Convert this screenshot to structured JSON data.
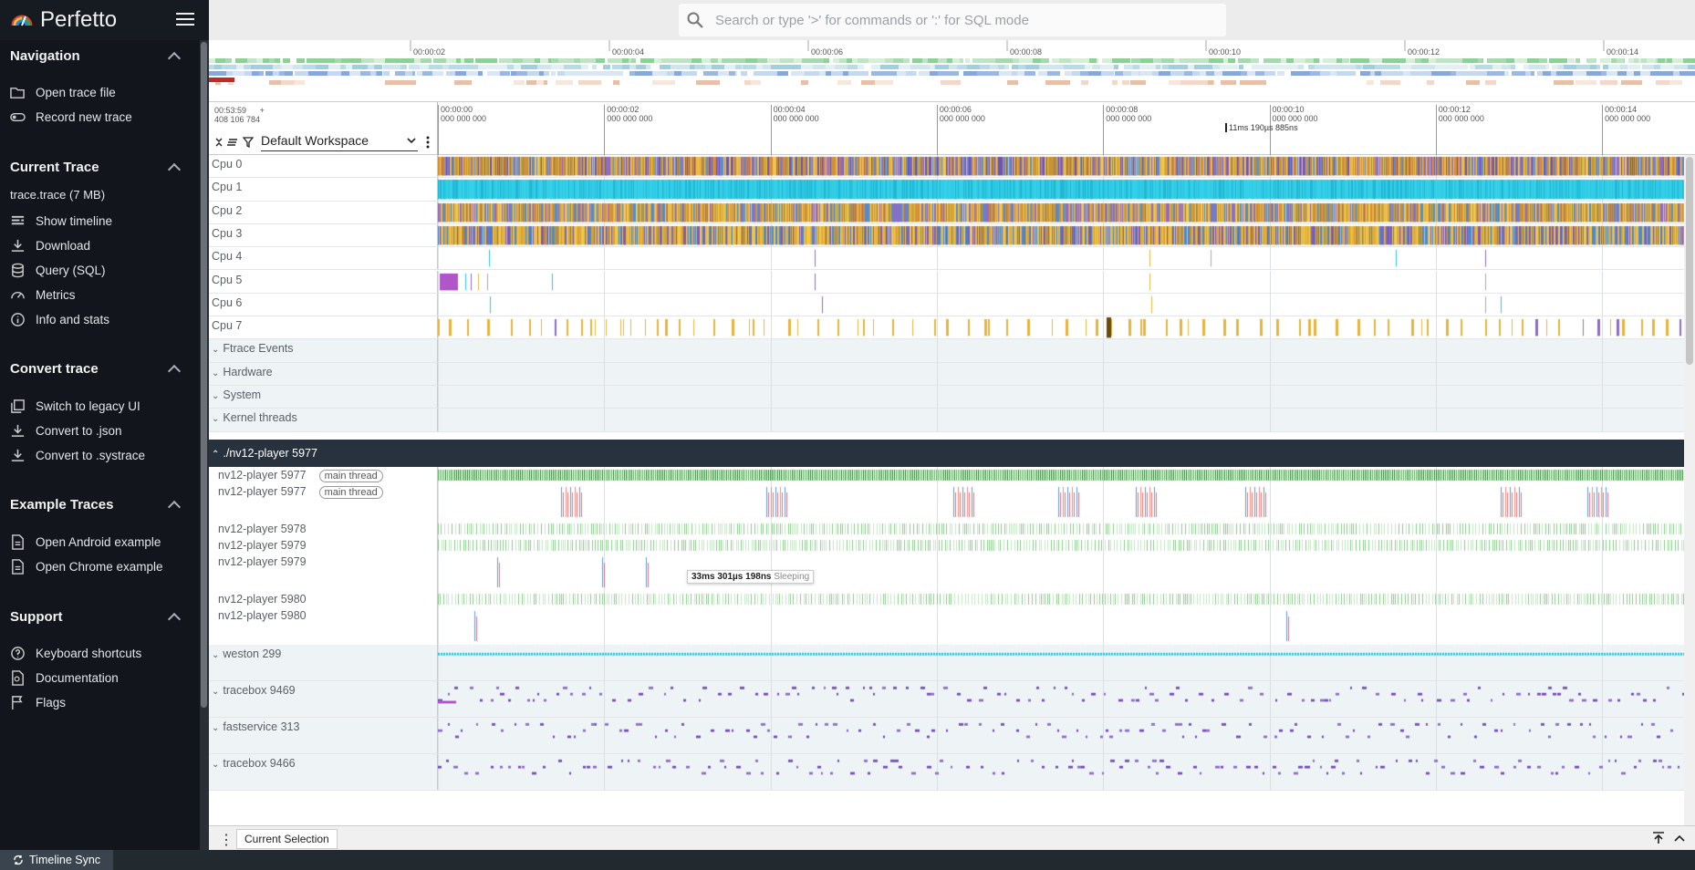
{
  "app": {
    "brand": "Perfetto"
  },
  "omnibox": {
    "placeholder": "Search or type '>' for commands or ':' for SQL mode"
  },
  "sidebar": {
    "sections": [
      {
        "title": "Navigation",
        "items": [
          "Open trace file",
          "Record new trace"
        ]
      },
      {
        "title": "Current Trace",
        "subtitle": "trace.trace (7 MB)",
        "items": [
          "Show timeline",
          "Download",
          "Query (SQL)",
          "Metrics",
          "Info and stats"
        ]
      },
      {
        "title": "Convert trace",
        "items": [
          "Switch to legacy UI",
          "Convert to .json",
          "Convert to .systrace"
        ]
      },
      {
        "title": "Example Traces",
        "items": [
          "Open Android example",
          "Open Chrome example"
        ]
      },
      {
        "title": "Support",
        "items": [
          "Keyboard shortcuts",
          "Documentation",
          "Flags"
        ]
      }
    ]
  },
  "overview": {
    "ticks": [
      "00:00:02",
      "00:00:04",
      "00:00:06",
      "00:00:08",
      "00:00:10",
      "00:00:12",
      "00:00:14"
    ]
  },
  "timeaxis": {
    "clock_line1": "00:53:59",
    "clock_line2": "408 106 784",
    "plus": "+",
    "workspace": "Default Workspace",
    "ticks": [
      {
        "t": "00:00:00",
        "ns": "000 000 000"
      },
      {
        "t": "00:00:02",
        "ns": "000 000 000"
      },
      {
        "t": "00:00:04",
        "ns": "000 000 000"
      },
      {
        "t": "00:00:06",
        "ns": "000 000 000"
      },
      {
        "t": "00:00:08",
        "ns": "000 000 000"
      },
      {
        "t": "00:00:10",
        "ns": "000 000 000"
      },
      {
        "t": "00:00:12",
        "ns": "000 000 000"
      },
      {
        "t": "00:00:14",
        "ns": "000 000 000"
      }
    ],
    "cursor_label": "11ms 190µs 885ns"
  },
  "tracks": {
    "cpus": [
      "Cpu 0",
      "Cpu 1",
      "Cpu 2",
      "Cpu 3",
      "Cpu 4",
      "Cpu 5",
      "Cpu 6",
      "Cpu 7"
    ],
    "groups": [
      "Ftrace Events",
      "Hardware",
      "System",
      "Kernel threads"
    ],
    "process_group": "./nv12-player 5977",
    "threads": [
      {
        "name": "nv12-player 5977",
        "pill": "main thread"
      },
      {
        "name": "nv12-player 5977",
        "pill": "main thread"
      },
      {
        "name": "nv12-player 5978",
        "pill": ""
      },
      {
        "name": "nv12-player 5979",
        "pill": ""
      },
      {
        "name": "nv12-player 5979",
        "pill": ""
      },
      {
        "name": "nv12-player 5980",
        "pill": ""
      },
      {
        "name": "nv12-player 5980",
        "pill": ""
      }
    ],
    "collapsed_processes": [
      "weston 299",
      "tracebox 9469",
      "fastservice 313",
      "tracebox 9466"
    ]
  },
  "tooltip": {
    "duration": "33ms 301µs 198ns",
    "state": "Sleeping"
  },
  "bottom": {
    "tab": "Current Selection",
    "timeline_sync": "Timeline Sync"
  },
  "colors": {
    "sidebar_bg": "#12161c",
    "process_header_bg": "#28323f",
    "cpu1_color": "#2bc7e3",
    "thread_running": "#3a8a3a"
  }
}
